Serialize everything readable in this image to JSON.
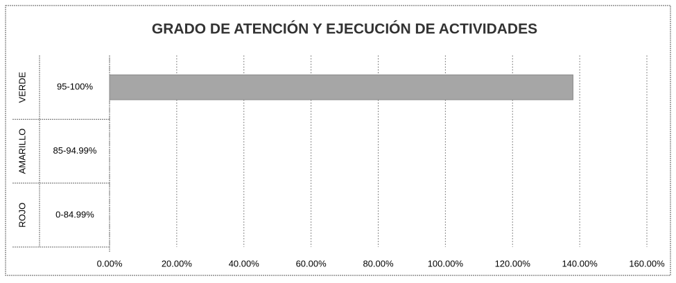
{
  "chart_data": {
    "type": "bar",
    "orientation": "horizontal",
    "title": "GRADO DE ATENCIÓN Y EJECUCIÓN DE ACTIVIDADES",
    "category_groups": [
      "VERDE",
      "AMARILLO",
      "ROJO"
    ],
    "categories": [
      "95-100%",
      "85-94.99%",
      "0-84.99%"
    ],
    "values": [
      138,
      null,
      null
    ],
    "color": "#a6a6a6",
    "xlim": [
      0,
      160
    ],
    "xticks": [
      {
        "value": 0,
        "label": "0.00%"
      },
      {
        "value": 20,
        "label": "20.00%"
      },
      {
        "value": 40,
        "label": "40.00%"
      },
      {
        "value": 60,
        "label": "60.00%"
      },
      {
        "value": 80,
        "label": "80.00%"
      },
      {
        "value": 100,
        "label": "100.00%"
      },
      {
        "value": 120,
        "label": "120.00%"
      },
      {
        "value": 140,
        "label": "140.00%"
      },
      {
        "value": 160,
        "label": "160.00%"
      }
    ],
    "grid": true
  }
}
